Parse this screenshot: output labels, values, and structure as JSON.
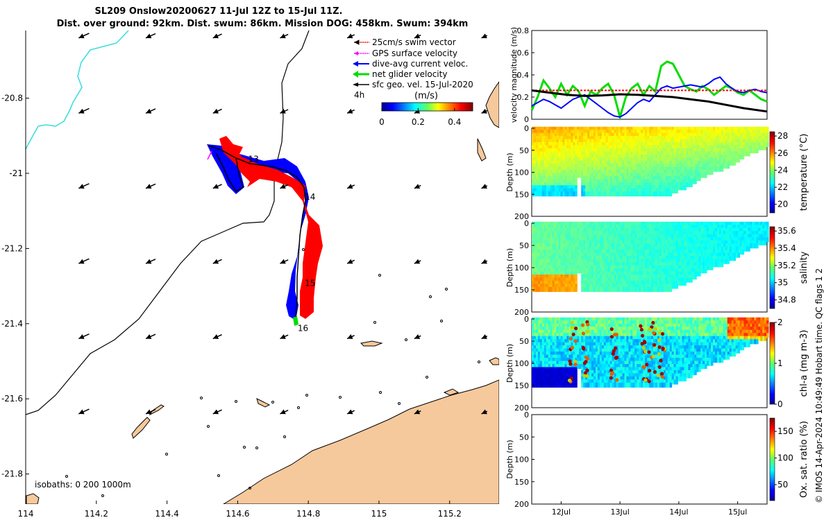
{
  "header": {
    "title_line1": "SL209 Onslow20200627 11-Jul 12Z to 15-Jul 11Z.",
    "title_line2": "Dist. over ground: 92km. Dist. swum: 86km. Mission DOG: 458km. Swum: 394km"
  },
  "footer": {
    "credit": "© IMOS 14-Apr-2024 10:49:49 Hobart time. QC flags 1  2"
  },
  "colors": {
    "land": "#f6c99c",
    "swim": "#ff0000",
    "dive_avg": "#0000ff",
    "net_velocity": "#00dd00",
    "gps": "#ff00ff",
    "geo_vel": "#000000",
    "coast_line_cyan": "#33dddd"
  },
  "chart_data": [
    {
      "type": "map",
      "x_ticks": [
        "114",
        "114.2",
        "114.4",
        "114.6",
        "114.8",
        "115",
        "115.2"
      ],
      "y_ticks": [
        "-20.8",
        "-21",
        "-21.2",
        "-21.4",
        "-21.6",
        "-21.8"
      ],
      "xlim": [
        114.0,
        115.34
      ],
      "ylim": [
        -21.88,
        -20.62
      ],
      "legend": {
        "placement": "top-right",
        "items": [
          {
            "label": "25cm/s swim vector",
            "color": "#ff0000"
          },
          {
            "label": "GPS surface velocity",
            "color": "#ff00ff"
          },
          {
            "label": "dive-avg current veloc.",
            "color": "#0000ff"
          },
          {
            "label": "net glider velocity",
            "color": "#00dd00"
          },
          {
            "label": "sfc geo. vel. 15-Jul-2020",
            "color": "#000000"
          }
        ],
        "extra_label": "4h"
      },
      "colorbar": {
        "title": "(m/s)",
        "ticks": [
          "0",
          "0.2",
          "0.4"
        ],
        "range": [
          0,
          0.5
        ]
      },
      "day_labels": [
        {
          "text": "13",
          "lon": 114.63,
          "lat": -20.97
        },
        {
          "text": "14",
          "lon": 114.79,
          "lat": -21.07
        },
        {
          "text": "15",
          "lon": 114.79,
          "lat": -21.3
        },
        {
          "text": "16",
          "lon": 114.77,
          "lat": -21.42
        }
      ],
      "isobath_label": "isobaths: 0   200  1000m"
    },
    {
      "type": "line",
      "ylabel": "velocity magnitude (m/s)",
      "ylim": [
        0,
        0.8
      ],
      "y_ticks": [
        "0",
        "0.2",
        "0.4",
        "0.6",
        "0.8"
      ],
      "xlim": [
        11.5,
        15.5
      ],
      "series": [
        {
          "name": "net glider velocity",
          "color": "#00dd00",
          "x": [
            11.5,
            11.6,
            11.7,
            11.8,
            11.9,
            12.0,
            12.1,
            12.2,
            12.3,
            12.4,
            12.5,
            12.6,
            12.7,
            12.8,
            12.9,
            13.0,
            13.1,
            13.2,
            13.3,
            13.4,
            13.5,
            13.6,
            13.7,
            13.8,
            13.9,
            14.0,
            14.1,
            14.2,
            14.3,
            14.4,
            14.5,
            14.6,
            14.7,
            14.8,
            14.9,
            15.0,
            15.1,
            15.2,
            15.3,
            15.4,
            15.5
          ],
          "y": [
            0.08,
            0.2,
            0.35,
            0.28,
            0.2,
            0.32,
            0.22,
            0.3,
            0.25,
            0.12,
            0.25,
            0.22,
            0.28,
            0.32,
            0.22,
            0.02,
            0.2,
            0.28,
            0.32,
            0.22,
            0.3,
            0.25,
            0.48,
            0.52,
            0.5,
            0.4,
            0.3,
            0.27,
            0.25,
            0.3,
            0.27,
            0.22,
            0.26,
            0.3,
            0.28,
            0.24,
            0.22,
            0.26,
            0.22,
            0.18,
            0.16
          ]
        },
        {
          "name": "dive-avg current veloc.",
          "color": "#0000ff",
          "x": [
            11.5,
            11.6,
            11.7,
            11.8,
            11.9,
            12.0,
            12.1,
            12.2,
            12.3,
            12.4,
            12.5,
            12.6,
            12.7,
            12.8,
            12.9,
            13.0,
            13.1,
            13.2,
            13.3,
            13.4,
            13.5,
            13.6,
            13.7,
            13.8,
            13.9,
            14.0,
            14.1,
            14.2,
            14.3,
            14.4,
            14.5,
            14.6,
            14.7,
            14.8,
            14.9,
            15.0,
            15.1,
            15.2,
            15.3,
            15.4,
            15.5
          ],
          "y": [
            0.12,
            0.15,
            0.18,
            0.16,
            0.13,
            0.1,
            0.14,
            0.18,
            0.2,
            0.22,
            0.18,
            0.14,
            0.1,
            0.06,
            0.03,
            0.02,
            0.05,
            0.1,
            0.15,
            0.18,
            0.16,
            0.22,
            0.28,
            0.3,
            0.28,
            0.29,
            0.3,
            0.31,
            0.3,
            0.29,
            0.32,
            0.36,
            0.38,
            0.32,
            0.28,
            0.25,
            0.24,
            0.26,
            0.27,
            0.25,
            0.24
          ]
        },
        {
          "name": "swim vector",
          "color": "#ff0000",
          "x": [
            11.5,
            12.0,
            12.5,
            13.0,
            13.5,
            14.0,
            14.5,
            15.0,
            15.5
          ],
          "y": [
            0.26,
            0.26,
            0.26,
            0.26,
            0.26,
            0.26,
            0.26,
            0.26,
            0.26
          ]
        },
        {
          "name": "sfc geo. vel.",
          "color": "#000000",
          "x": [
            11.5,
            11.8,
            12.1,
            12.4,
            12.7,
            13.0,
            13.3,
            13.6,
            13.9,
            14.2,
            14.5,
            14.8,
            15.1,
            15.5
          ],
          "y": [
            0.26,
            0.24,
            0.22,
            0.21,
            0.215,
            0.225,
            0.22,
            0.21,
            0.2,
            0.18,
            0.16,
            0.13,
            0.1,
            0.07
          ]
        }
      ]
    },
    {
      "type": "heatmap",
      "ylabel": "Depth (m)",
      "cbar_label": "temperature (°C)",
      "cbar_ticks": [
        "20",
        "22",
        "24",
        "26",
        "28"
      ],
      "clim": [
        19,
        28.5
      ],
      "y_ticks": [
        "0",
        "50",
        "100",
        "150",
        "200"
      ],
      "ylim": [
        200,
        0
      ],
      "xlim": [
        11.5,
        15.5
      ]
    },
    {
      "type": "heatmap",
      "ylabel": "Depth (m)",
      "cbar_label": "salinity",
      "cbar_ticks": [
        "34.8",
        "35",
        "35.2",
        "35.4",
        "35.6"
      ],
      "clim": [
        34.7,
        35.65
      ],
      "y_ticks": [
        "0",
        "50",
        "100",
        "150",
        "200"
      ],
      "ylim": [
        200,
        0
      ],
      "xlim": [
        11.5,
        15.5
      ]
    },
    {
      "type": "heatmap",
      "ylabel": "Depth (m)",
      "cbar_label": "chl-a (mg m-3)",
      "cbar_ticks": [
        "0",
        "1",
        "2"
      ],
      "clim": [
        0,
        2
      ],
      "y_ticks": [
        "0",
        "50",
        "100",
        "150",
        "200"
      ],
      "ylim": [
        200,
        0
      ],
      "xlim": [
        11.5,
        15.5
      ]
    },
    {
      "type": "heatmap",
      "ylabel": "Depth (m)",
      "cbar_label": "Ox. sat. ratio (%)",
      "cbar_ticks": [
        "50",
        "100",
        "150"
      ],
      "clim": [
        20,
        175
      ],
      "y_ticks": [
        "0",
        "50",
        "100",
        "150",
        "200"
      ],
      "ylim": [
        200,
        0
      ],
      "xlim": [
        11.5,
        15.5
      ],
      "x_ticks": [
        "12Jul",
        "13Jul",
        "14Jul",
        "15Jul"
      ]
    }
  ]
}
